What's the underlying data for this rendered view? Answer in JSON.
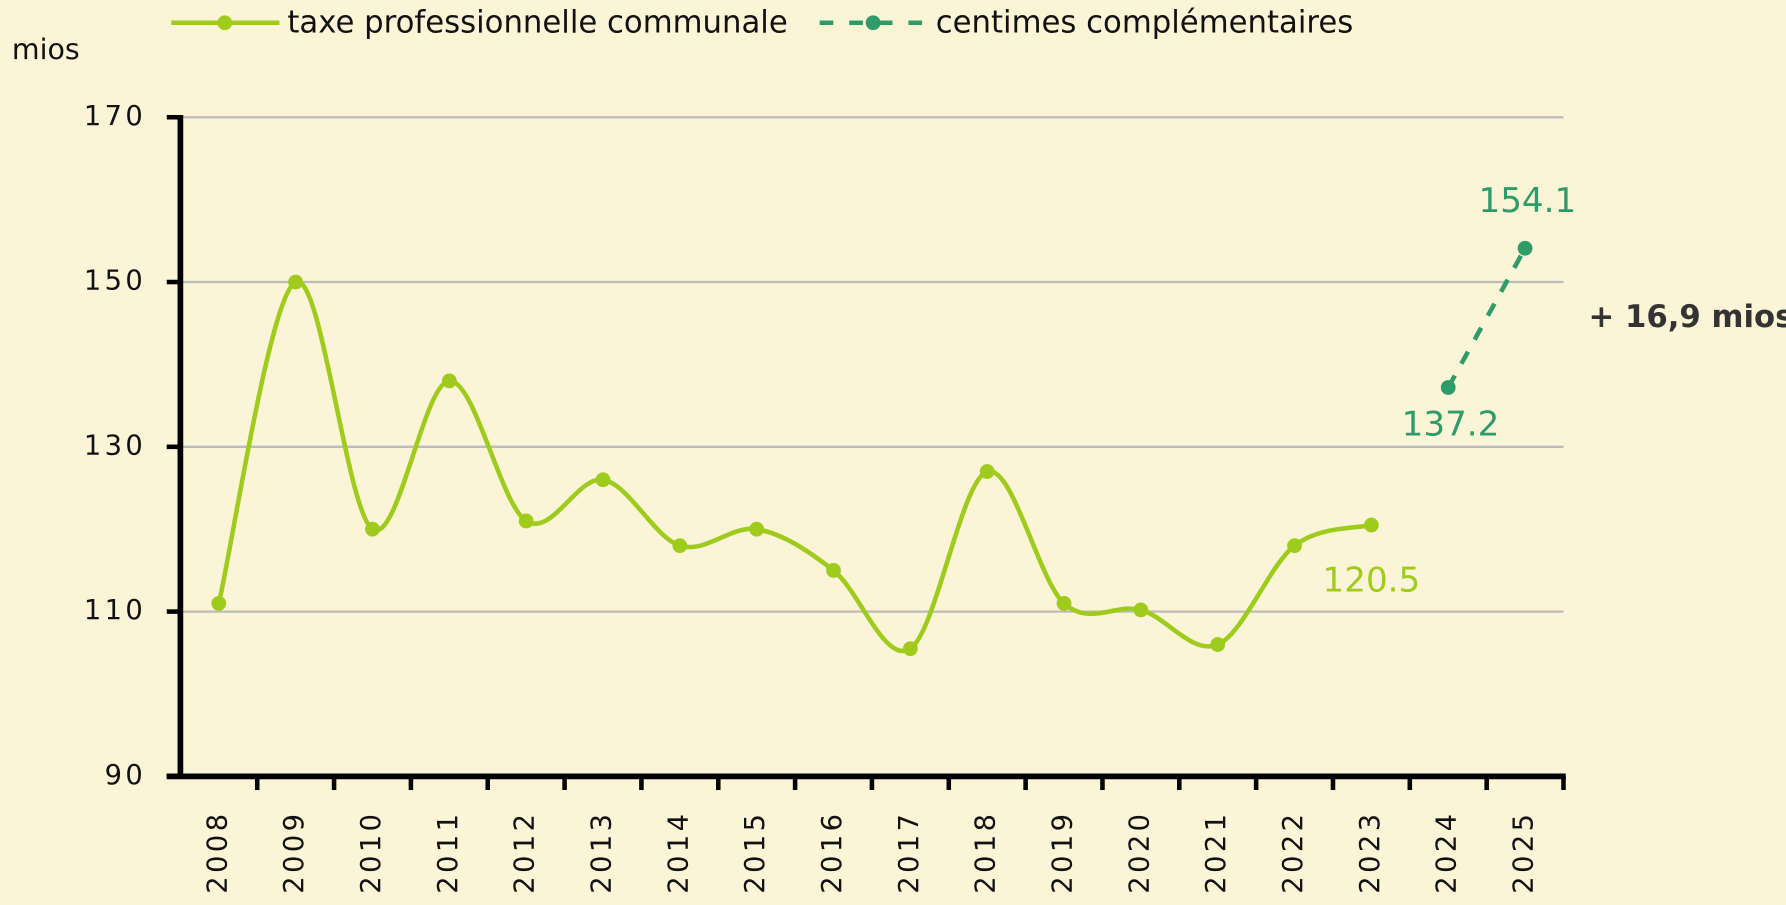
{
  "chart_data": {
    "type": "line",
    "y_label": "mios",
    "annotation": "+ 16,9 mios",
    "categories": [
      "2008",
      "2009",
      "2010",
      "2011",
      "2012",
      "2013",
      "2014",
      "2015",
      "2016",
      "2017",
      "2018",
      "2019",
      "2020",
      "2021",
      "2022",
      "2023",
      "2024",
      "2025"
    ],
    "series": [
      {
        "name": "taxe professionnelle communale",
        "color": "#9fcb1c",
        "dashed": false,
        "values": [
          111,
          150,
          120,
          138,
          121,
          126,
          118,
          120,
          115,
          105.5,
          127,
          111,
          110.2,
          106,
          118,
          120.5,
          null,
          null
        ]
      },
      {
        "name": "centimes complémentaires",
        "color": "#2e9b68",
        "dashed": true,
        "values": [
          null,
          null,
          null,
          null,
          null,
          null,
          null,
          null,
          null,
          null,
          null,
          null,
          null,
          null,
          null,
          null,
          137.2,
          154.1
        ]
      }
    ],
    "ylim": [
      90,
      170
    ],
    "yticks": [
      90,
      110,
      130,
      150,
      170
    ],
    "grid": true
  }
}
